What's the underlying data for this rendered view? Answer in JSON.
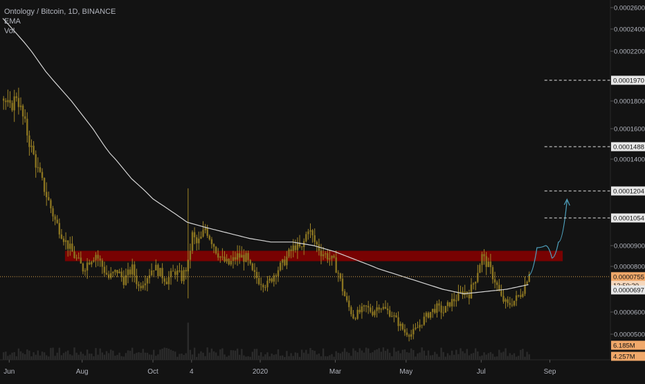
{
  "legend": {
    "title": "Ontology / Bitcoin, 1D, BINANCE",
    "indicator_1": "EMA",
    "indicator_2": "Vol"
  },
  "colors": {
    "background": "#131313",
    "candle": "#8a7420",
    "candle_wick": "#a08628",
    "ema": "#d6d6d6",
    "resistance_zone": "#8b0000",
    "current_price_line": "#d9a24a",
    "projection": "#4fa3c0",
    "axis_text": "#b2b5be",
    "volume": "#2b2b2b"
  },
  "chart_data": {
    "type": "candlestick",
    "title": "Ontology / Bitcoin, 1D, BINANCE",
    "xlabel": "",
    "ylabel": "",
    "ylim": [
      4.4e-05,
      0.00027
    ],
    "x_ticks": [
      "Jun",
      "Aug",
      "Oct",
      "4",
      "2020",
      "Mar",
      "May",
      "Jul",
      "Sep"
    ],
    "y_ticks": [
      "0.0000500",
      "0.0000600",
      "0.0000800",
      "0.0000900",
      "0.0001400",
      "0.0001600",
      "0.0001800",
      "0.0002200",
      "0.0002400",
      "0.0002600"
    ],
    "price_anchors": [
      [
        0,
        0.000182
      ],
      [
        6,
        0.000174
      ],
      [
        12,
        0.000185
      ],
      [
        18,
        0.000168
      ],
      [
        24,
        0.000152
      ],
      [
        32,
        0.000133
      ],
      [
        40,
        0.000118
      ],
      [
        48,
        0.000104
      ],
      [
        58,
        9.2e-05
      ],
      [
        66,
        8.5e-05
      ],
      [
        74,
        7.9e-05
      ],
      [
        80,
        8.3e-05
      ],
      [
        86,
        8.6e-05
      ],
      [
        92,
        8e-05
      ],
      [
        98,
        7.5e-05
      ],
      [
        106,
        7.8e-05
      ],
      [
        112,
        7.4e-05
      ],
      [
        120,
        7.9e-05
      ],
      [
        126,
        7.1e-05
      ],
      [
        134,
        7.6e-05
      ],
      [
        140,
        8e-05
      ],
      [
        146,
        7.7e-05
      ],
      [
        152,
        7.4e-05
      ],
      [
        160,
        7.8e-05
      ],
      [
        166,
        7.5e-05
      ],
      [
        172,
        8.1e-05
      ],
      [
        176,
        9.6e-05
      ],
      [
        180,
        9.1e-05
      ],
      [
        184,
        9.4e-05
      ],
      [
        188,
        0.0001
      ],
      [
        192,
        9.5e-05
      ],
      [
        198,
        8.8e-05
      ],
      [
        204,
        8.3e-05
      ],
      [
        210,
        8.1e-05
      ],
      [
        218,
        8.5e-05
      ],
      [
        226,
        8.4e-05
      ],
      [
        232,
        7.7e-05
      ],
      [
        238,
        7.4e-05
      ],
      [
        246,
        7.2e-05
      ],
      [
        254,
        7.8e-05
      ],
      [
        260,
        8.1e-05
      ],
      [
        266,
        8.6e-05
      ],
      [
        272,
        9e-05
      ],
      [
        278,
        8.8e-05
      ],
      [
        284,
        0.0001
      ],
      [
        290,
        9.2e-05
      ],
      [
        296,
        8.7e-05
      ],
      [
        302,
        8.5e-05
      ],
      [
        308,
        8.2e-05
      ],
      [
        312,
        7.7e-05
      ],
      [
        316,
        7e-05
      ],
      [
        320,
        6.4e-05
      ],
      [
        326,
        5.8e-05
      ],
      [
        332,
        6e-05
      ],
      [
        338,
        6.2e-05
      ],
      [
        344,
        6e-05
      ],
      [
        350,
        6.3e-05
      ],
      [
        356,
        6.1e-05
      ],
      [
        362,
        5.9e-05
      ],
      [
        368,
        5.5e-05
      ],
      [
        374,
        5.1e-05
      ],
      [
        380,
        5e-05
      ],
      [
        386,
        5.3e-05
      ],
      [
        392,
        5.7e-05
      ],
      [
        398,
        6e-05
      ],
      [
        404,
        6.2e-05
      ],
      [
        410,
        6e-05
      ],
      [
        416,
        6.4e-05
      ],
      [
        422,
        6.6e-05
      ],
      [
        428,
        6.9e-05
      ],
      [
        434,
        6.8e-05
      ],
      [
        440,
        7.5e-05
      ],
      [
        446,
        8.5e-05
      ],
      [
        452,
        8e-05
      ],
      [
        458,
        7.4e-05
      ],
      [
        464,
        6.6e-05
      ],
      [
        470,
        6.3e-05
      ],
      [
        476,
        6.5e-05
      ],
      [
        482,
        6.8e-05
      ],
      [
        486,
        7.2e-05
      ],
      [
        490,
        7.8e-05
      ]
    ],
    "ema_anchors": [
      [
        0,
        0.00025
      ],
      [
        20,
        0.000228
      ],
      [
        40,
        0.000204
      ],
      [
        60,
        0.000184
      ],
      [
        80,
        0.000164
      ],
      [
        100,
        0.000144
      ],
      [
        120,
        0.000128
      ],
      [
        140,
        0.000116
      ],
      [
        160,
        0.000108
      ],
      [
        172,
        0.000103
      ],
      [
        190,
        0.0001
      ],
      [
        210,
        9.7e-05
      ],
      [
        230,
        9.4e-05
      ],
      [
        250,
        9.2e-05
      ],
      [
        270,
        9.2e-05
      ],
      [
        290,
        9e-05
      ],
      [
        310,
        8.7e-05
      ],
      [
        330,
        8.3e-05
      ],
      [
        350,
        7.9e-05
      ],
      [
        370,
        7.6e-05
      ],
      [
        390,
        7.3e-05
      ],
      [
        410,
        7e-05
      ],
      [
        430,
        6.8e-05
      ],
      [
        450,
        6.9e-05
      ],
      [
        470,
        7e-05
      ],
      [
        490,
        7.2e-05
      ]
    ],
    "resistance_zone": {
      "from": 8.25e-05,
      "to": 8.75e-05
    },
    "current_price": 7.55e-05,
    "projection": [
      [
        490,
        7.6e-05
      ],
      [
        498,
        8.9e-05
      ],
      [
        506,
        9e-05
      ],
      [
        512,
        8.4e-05
      ],
      [
        518,
        9.2e-05
      ],
      [
        526,
        0.000115
      ]
    ],
    "price_labels": [
      {
        "label": "0.0001970",
        "value": 0.000197,
        "line_from_day": 505
      },
      {
        "label": "0.0001488",
        "value": 0.0001488,
        "line_from_day": 505
      },
      {
        "label": "0.0001204",
        "value": 0.0001204,
        "line_from_day": 505
      },
      {
        "label": "0.0001054",
        "value": 0.0001054,
        "line_from_day": 505
      },
      {
        "label": "0.0000755",
        "value": 7.55e-05,
        "highlight": true
      },
      {
        "label": "13:50:20",
        "value": 7.17e-05,
        "highlight": false,
        "countdown": true
      },
      {
        "label": "0.0000697",
        "value": 6.97e-05
      }
    ],
    "volume_labels": [
      {
        "label": "6.185M",
        "slot": 0
      },
      {
        "label": "4.257M",
        "slot": 1
      }
    ],
    "grid": false,
    "legend_position": "top-left"
  }
}
